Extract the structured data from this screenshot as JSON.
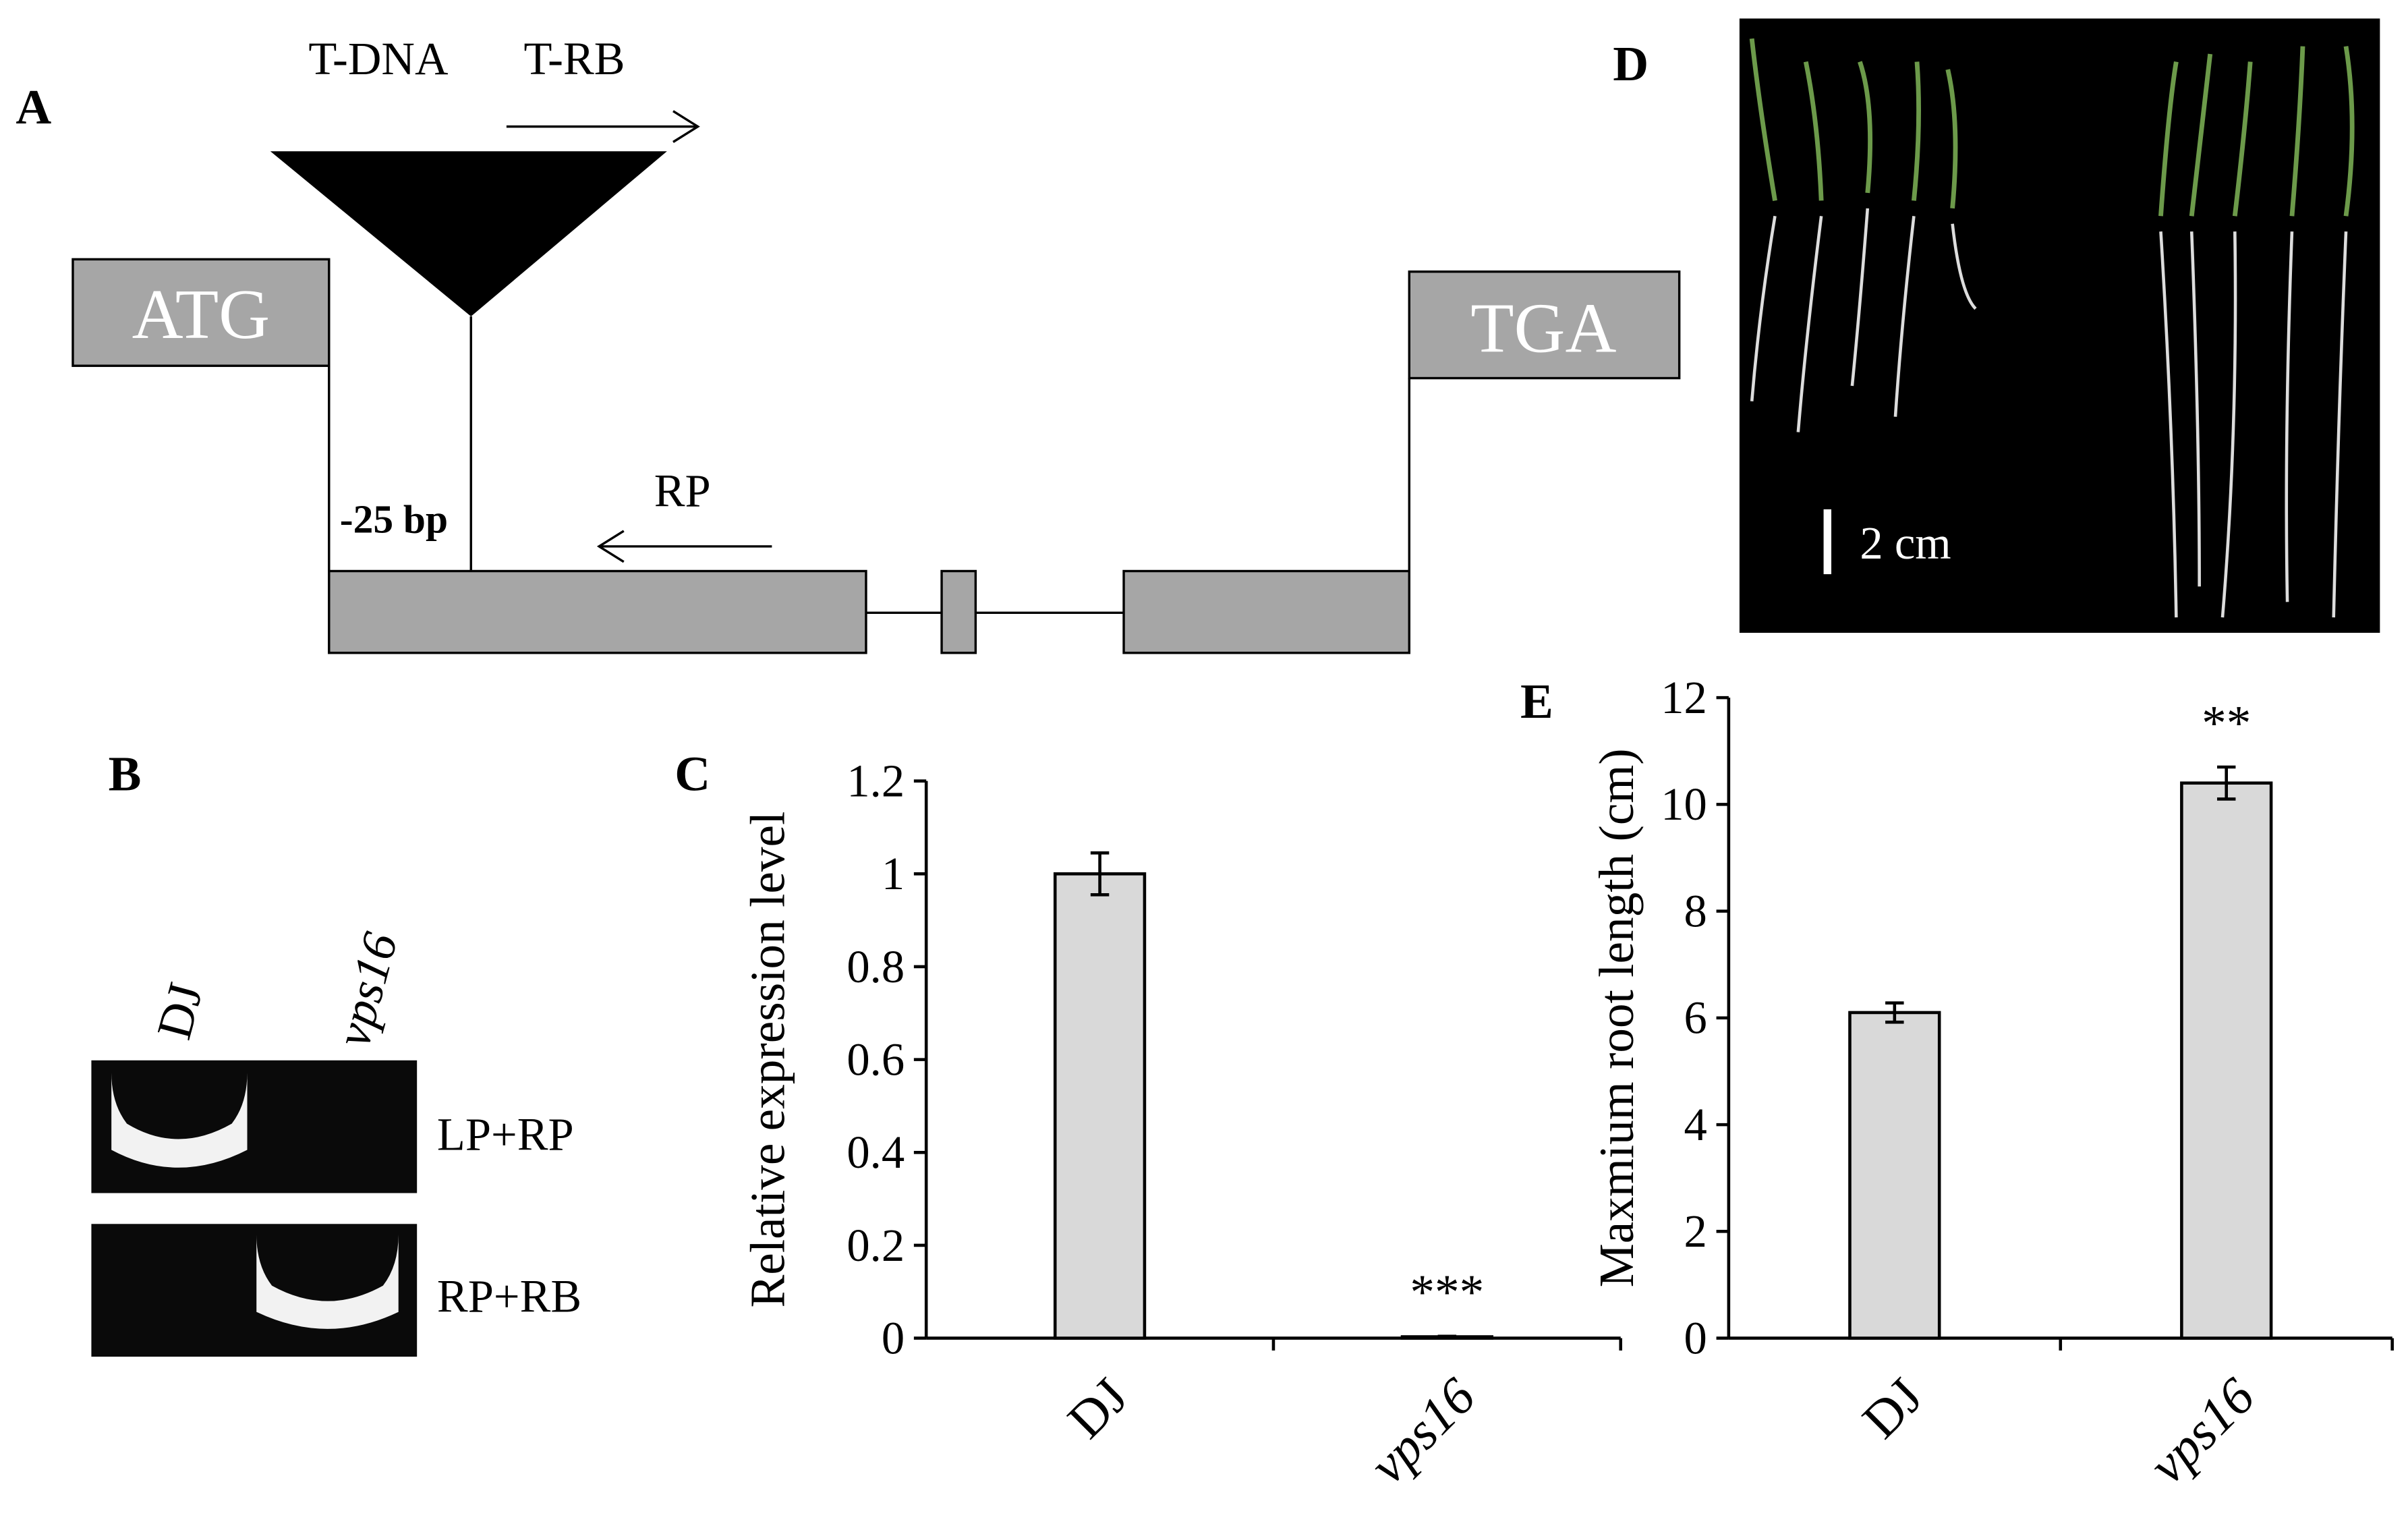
{
  "panel_labels": [
    "A",
    "B",
    "C",
    "D",
    "E"
  ],
  "gene_diagram": {
    "insert": "T-DNA",
    "border_primer": "T-RB",
    "start": "ATG",
    "stop": "TGA",
    "position": "-25 bp",
    "reverse_primer": "RP"
  },
  "gel": {
    "lanes": [
      "DJ",
      "vps16"
    ],
    "rows": [
      "LP+RP",
      "RP+RB"
    ]
  },
  "photo": {
    "scale_bar": "2 cm"
  },
  "chart_data": [
    {
      "type": "bar",
      "ylabel": "Relative expression level",
      "categories": [
        "DJ",
        "vps16"
      ],
      "values": [
        1,
        0.003
      ],
      "errors": [
        0.045,
        0.001
      ],
      "color": "#d9d9d9",
      "ylim": [
        0,
        1.2
      ],
      "yticks": [
        0,
        0.2,
        0.4,
        0.6,
        0.8,
        1,
        1.2
      ],
      "annotations": [
        {
          "text": "***",
          "x": "vps16"
        }
      ]
    },
    {
      "type": "bar",
      "ylabel": "Maxmium root length (cm)",
      "categories": [
        "DJ",
        "vps16"
      ],
      "values": [
        6.1,
        10.4
      ],
      "errors": [
        0.18,
        0.3
      ],
      "color": "#d9d9d9",
      "ylim": [
        0,
        12
      ],
      "yticks": [
        0,
        2,
        4,
        6,
        8,
        10,
        12
      ],
      "annotations": [
        {
          "text": "**",
          "x": "vps16"
        }
      ]
    }
  ]
}
